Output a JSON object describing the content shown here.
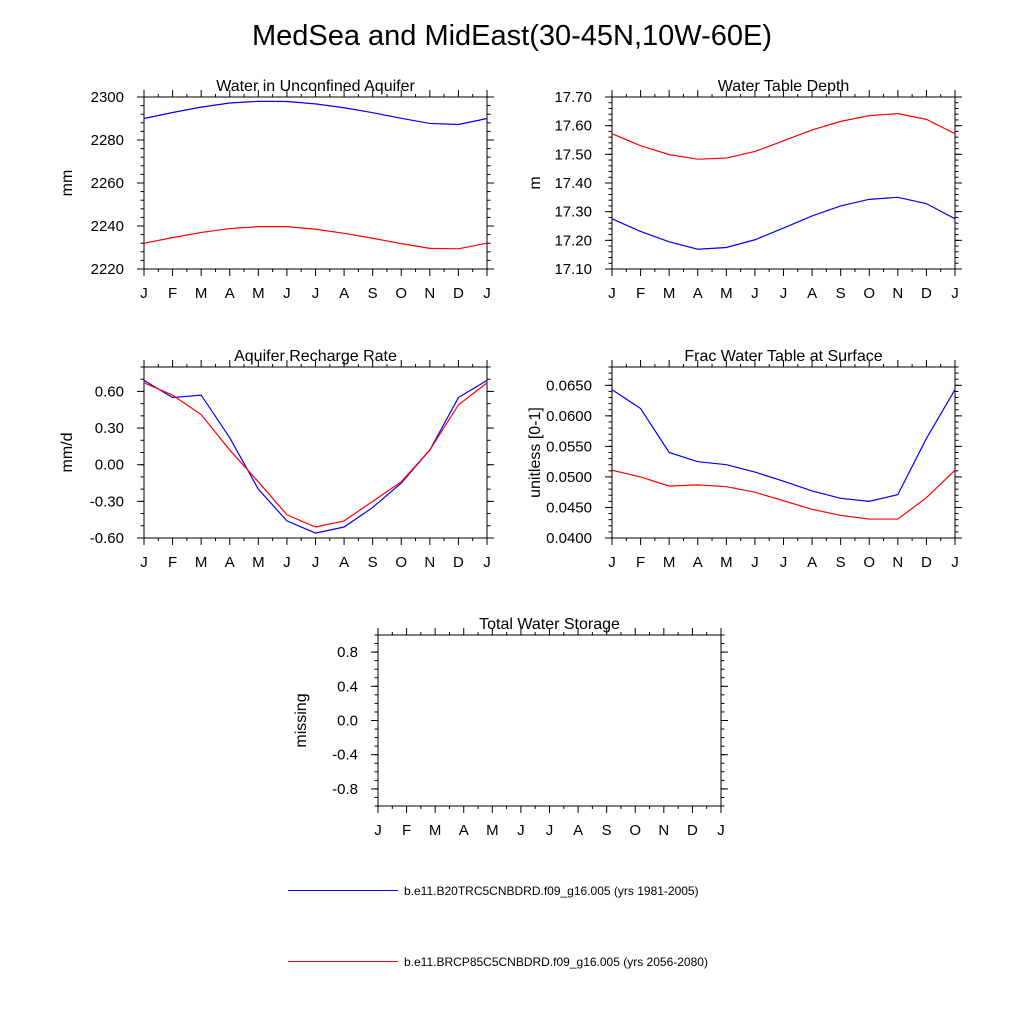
{
  "title": "MedSea and MidEast(30-45N,10W-60E)",
  "months": [
    "J",
    "F",
    "M",
    "A",
    "M",
    "J",
    "J",
    "A",
    "S",
    "O",
    "N",
    "D",
    "J"
  ],
  "colors": {
    "series1": "#0000ff",
    "series2": "#ff0000",
    "axis": "#000000"
  },
  "legend": [
    {
      "label": "b.e11.B20TRC5CNBDRD.f09_g16.005 (yrs 1981-2005)",
      "color": "#0000ff"
    },
    {
      "label": "b.e11.BRCP85C5CNBDRD.f09_g16.005 (yrs 2056-2080)",
      "color": "#ff0000"
    }
  ],
  "chart_data": [
    {
      "type": "line",
      "title": "Water in Unconfined Aquifer",
      "xlabel": "",
      "ylabel": "mm",
      "ylim": [
        2220,
        2300
      ],
      "yticks": [
        2220,
        2240,
        2260,
        2280,
        2300
      ],
      "ytick_labels": [
        "2220",
        "2240",
        "2260",
        "2280",
        "2300"
      ],
      "yminor": 5,
      "categories": [
        "J",
        "F",
        "M",
        "A",
        "M",
        "J",
        "J",
        "A",
        "S",
        "O",
        "N",
        "D",
        "J"
      ],
      "series": [
        {
          "name": "b.e11.B20TRC5CNBDRD.f09_g16.005 (yrs 1981-2005)",
          "values": [
            2290,
            2292.8,
            2295.3,
            2297.2,
            2298,
            2297.9,
            2296.8,
            2295,
            2292.7,
            2290.1,
            2287.7,
            2287.2,
            2290
          ]
        },
        {
          "name": "b.e11.BRCP85C5CNBDRD.f09_g16.005 (yrs 2056-2080)",
          "values": [
            2232,
            2234.6,
            2237,
            2238.8,
            2239.7,
            2239.7,
            2238.5,
            2236.6,
            2234.3,
            2231.8,
            2229.6,
            2229.4,
            2232
          ]
        }
      ]
    },
    {
      "type": "line",
      "title": "Water Table Depth",
      "xlabel": "",
      "ylabel": "m",
      "ylim": [
        17.1,
        17.7
      ],
      "yticks": [
        17.1,
        17.2,
        17.3,
        17.4,
        17.5,
        17.6,
        17.7
      ],
      "ytick_labels": [
        "17.10",
        "17.20",
        "17.30",
        "17.40",
        "17.50",
        "17.60",
        "17.70"
      ],
      "yminor": 5,
      "categories": [
        "J",
        "F",
        "M",
        "A",
        "M",
        "J",
        "J",
        "A",
        "S",
        "O",
        "N",
        "D",
        "J"
      ],
      "series": [
        {
          "name": "b.e11.B20TRC5CNBDRD.f09_g16.005 (yrs 1981-2005)",
          "values": [
            17.275,
            17.231,
            17.195,
            17.169,
            17.175,
            17.202,
            17.243,
            17.285,
            17.32,
            17.343,
            17.35,
            17.328,
            17.275
          ]
        },
        {
          "name": "b.e11.BRCP85C5CNBDRD.f09_g16.005 (yrs 2056-2080)",
          "values": [
            17.572,
            17.53,
            17.499,
            17.483,
            17.487,
            17.51,
            17.547,
            17.585,
            17.615,
            17.635,
            17.642,
            17.622,
            17.572
          ]
        }
      ]
    },
    {
      "type": "line",
      "title": "Aquifer Recharge Rate",
      "xlabel": "",
      "ylabel": "mm/d",
      "ylim": [
        -0.6,
        0.8
      ],
      "yticks": [
        -0.6,
        -0.3,
        0.0,
        0.3,
        0.6
      ],
      "ytick_labels": [
        "-0.60",
        "-0.30",
        "0.00",
        "0.30",
        "0.60"
      ],
      "yminor": 3,
      "categories": [
        "J",
        "F",
        "M",
        "A",
        "M",
        "J",
        "J",
        "A",
        "S",
        "O",
        "N",
        "D",
        "J"
      ],
      "series": [
        {
          "name": "b.e11.B20TRC5CNBDRD.f09_g16.005 (yrs 1981-2005)",
          "values": [
            0.69,
            0.55,
            0.57,
            0.22,
            -0.2,
            -0.46,
            -0.56,
            -0.51,
            -0.35,
            -0.15,
            0.12,
            0.55,
            0.69
          ]
        },
        {
          "name": "b.e11.BRCP85C5CNBDRD.f09_g16.005 (yrs 2056-2080)",
          "values": [
            0.67,
            0.57,
            0.41,
            0.12,
            -0.14,
            -0.41,
            -0.51,
            -0.46,
            -0.3,
            -0.14,
            0.12,
            0.49,
            0.67
          ]
        }
      ]
    },
    {
      "type": "line",
      "title": "Frac Water Table at Surface",
      "xlabel": "",
      "ylabel": "unitless [0-1]",
      "ylim": [
        0.04,
        0.068
      ],
      "yticks": [
        0.04,
        0.045,
        0.05,
        0.055,
        0.06,
        0.065
      ],
      "ytick_labels": [
        "0.0400",
        "0.0450",
        "0.0500",
        "0.0550",
        "0.0600",
        "0.0650"
      ],
      "yminor": 5,
      "categories": [
        "J",
        "F",
        "M",
        "A",
        "M",
        "J",
        "J",
        "A",
        "S",
        "O",
        "N",
        "D",
        "J"
      ],
      "series": [
        {
          "name": "b.e11.B20TRC5CNBDRD.f09_g16.005 (yrs 1981-2005)",
          "values": [
            0.0643,
            0.0612,
            0.054,
            0.0525,
            0.052,
            0.0508,
            0.0493,
            0.0477,
            0.0465,
            0.046,
            0.0471,
            0.0563,
            0.0643
          ]
        },
        {
          "name": "b.e11.BRCP85C5CNBDRD.f09_g16.005 (yrs 2056-2080)",
          "values": [
            0.0511,
            0.05,
            0.0485,
            0.0487,
            0.0484,
            0.0475,
            0.0461,
            0.0447,
            0.0437,
            0.0431,
            0.0431,
            0.0466,
            0.0511
          ]
        }
      ]
    },
    {
      "type": "line",
      "title": "Total Water Storage",
      "xlabel": "",
      "ylabel": "missing",
      "ylim": [
        -1.0,
        1.0
      ],
      "yticks": [
        -0.8,
        -0.4,
        0.0,
        0.4,
        0.8
      ],
      "ytick_labels": [
        "-0.8",
        "-0.4",
        "0.0",
        "0.4",
        "0.8"
      ],
      "yminor": 4,
      "categories": [
        "J",
        "F",
        "M",
        "A",
        "M",
        "J",
        "J",
        "A",
        "S",
        "O",
        "N",
        "D",
        "J"
      ],
      "series": []
    }
  ]
}
